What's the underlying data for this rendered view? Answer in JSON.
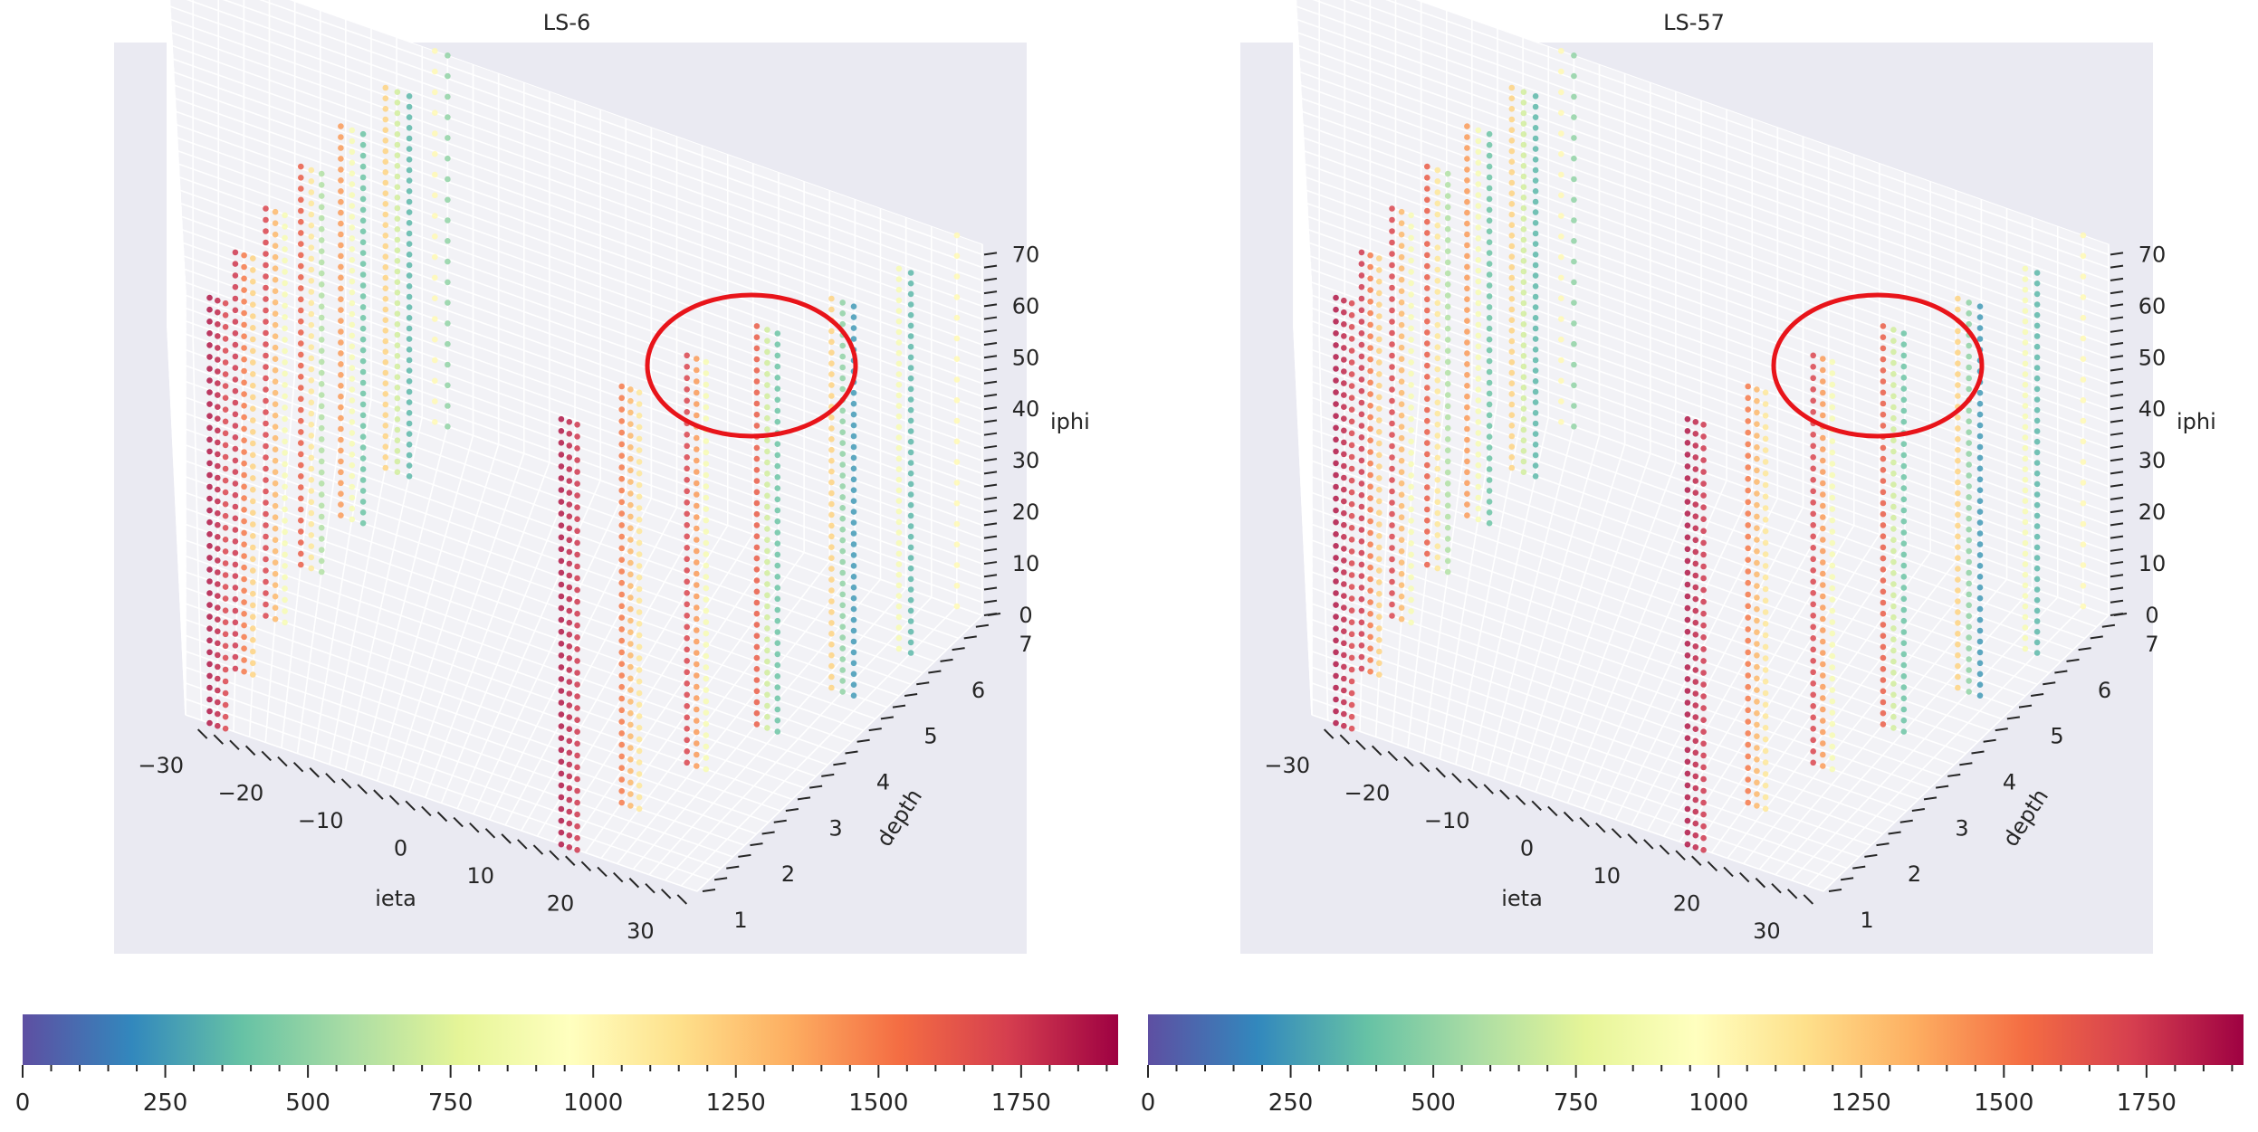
{
  "chart_data": [
    {
      "type": "scatter3d",
      "title": "LS-6",
      "xlabel": "ieta",
      "ylabel": "depth",
      "zlabel": "iphi",
      "xlim": [
        -32,
        32
      ],
      "ylim": [
        1,
        7
      ],
      "zlim": [
        0,
        72
      ],
      "xticks": [
        "−30",
        "−20",
        "−10",
        "0",
        "10",
        "20",
        "30"
      ],
      "yticks": [
        "1",
        "2",
        "3",
        "4",
        "5",
        "6",
        "7"
      ],
      "zticks": [
        "0",
        "10",
        "20",
        "30",
        "40",
        "50",
        "60",
        "70"
      ],
      "grid": true,
      "annotation": "red ellipse highlighting the depth 5–7, ieta 17–27 region near iphi 45–70",
      "series": [
        {
          "ieta": -29,
          "depth": 1,
          "iphi_range": [
            0,
            72
          ],
          "step": 2,
          "value": 1850
        },
        {
          "ieta": -28,
          "depth": 1,
          "iphi_range": [
            0,
            72
          ],
          "step": 2,
          "value": 1800
        },
        {
          "ieta": -27,
          "depth": 1,
          "iphi_range": [
            0,
            72
          ],
          "step": 2,
          "value": 1700
        },
        {
          "ieta": -26,
          "depth": 2,
          "iphi_range": [
            0,
            72
          ],
          "step": 2,
          "value": 1750
        },
        {
          "ieta": -25,
          "depth": 2,
          "iphi_range": [
            0,
            72
          ],
          "step": 2,
          "value": 1500
        },
        {
          "ieta": -24,
          "depth": 2,
          "iphi_range": [
            0,
            72
          ],
          "step": 2,
          "value": 1200
        },
        {
          "ieta": -23,
          "depth": 3,
          "iphi_range": [
            0,
            72
          ],
          "step": 2,
          "value": 1700
        },
        {
          "ieta": -22,
          "depth": 3,
          "iphi_range": [
            0,
            72
          ],
          "step": 2,
          "value": 1300
        },
        {
          "ieta": -21,
          "depth": 3,
          "iphi_range": [
            0,
            72
          ],
          "step": 2,
          "value": 900
        },
        {
          "ieta": -20,
          "depth": 4,
          "iphi_range": [
            0,
            72
          ],
          "step": 2,
          "value": 1600
        },
        {
          "ieta": -19,
          "depth": 4,
          "iphi_range": [
            0,
            72
          ],
          "step": 2,
          "value": 1100
        },
        {
          "ieta": -18,
          "depth": 4,
          "iphi_range": [
            0,
            72
          ],
          "step": 2,
          "value": 600
        },
        {
          "ieta": -17,
          "depth": 5,
          "iphi_range": [
            0,
            72
          ],
          "step": 2,
          "value": 1400
        },
        {
          "ieta": -16,
          "depth": 5,
          "iphi_range": [
            0,
            72
          ],
          "step": 2,
          "value": 900
        },
        {
          "ieta": -15,
          "depth": 5,
          "iphi_range": [
            0,
            72
          ],
          "step": 2,
          "value": 400
        },
        {
          "ieta": -14,
          "depth": 6,
          "iphi_range": [
            0,
            72
          ],
          "step": 2,
          "value": 1200
        },
        {
          "ieta": -13,
          "depth": 6,
          "iphi_range": [
            0,
            72
          ],
          "step": 2,
          "value": 700
        },
        {
          "ieta": -12,
          "depth": 6,
          "iphi_range": [
            0,
            72
          ],
          "step": 2,
          "value": 350
        },
        {
          "ieta": -11,
          "depth": 7,
          "iphi_range": [
            0,
            72
          ],
          "step": 4,
          "value": 1000
        },
        {
          "ieta": -10,
          "depth": 7,
          "iphi_range": [
            0,
            72
          ],
          "step": 4,
          "value": 500
        },
        {
          "ieta": 15,
          "depth": 1,
          "iphi_range": [
            0,
            72
          ],
          "step": 2,
          "value": 1850
        },
        {
          "ieta": 16,
          "depth": 1,
          "iphi_range": [
            0,
            72
          ],
          "step": 2,
          "value": 1800
        },
        {
          "ieta": 17,
          "depth": 1,
          "iphi_range": [
            0,
            72
          ],
          "step": 2,
          "value": 1750
        },
        {
          "ieta": 18,
          "depth": 2,
          "iphi_range": [
            0,
            72
          ],
          "step": 2,
          "value": 1500
        },
        {
          "ieta": 19,
          "depth": 2,
          "iphi_range": [
            0,
            72
          ],
          "step": 2,
          "value": 1300
        },
        {
          "ieta": 20,
          "depth": 2,
          "iphi_range": [
            0,
            72
          ],
          "step": 2,
          "value": 1100
        },
        {
          "ieta": 21,
          "depth": 3,
          "iphi_range": [
            0,
            72
          ],
          "step": 2,
          "value": 1700
        },
        {
          "ieta": 22,
          "depth": 3,
          "iphi_range": [
            0,
            72
          ],
          "step": 2,
          "value": 1400
        },
        {
          "ieta": 23,
          "depth": 3,
          "iphi_range": [
            0,
            72
          ],
          "step": 2,
          "value": 900
        },
        {
          "ieta": 24,
          "depth": 4,
          "iphi_range": [
            0,
            72
          ],
          "step": 2,
          "value": 1600
        },
        {
          "ieta": 25,
          "depth": 4,
          "iphi_range": [
            0,
            72
          ],
          "step": 2,
          "value": 700
        },
        {
          "ieta": 26,
          "depth": 4,
          "iphi_range": [
            0,
            72
          ],
          "step": 2,
          "value": 400
        },
        {
          "ieta": 27,
          "depth": 5,
          "iphi_range": [
            0,
            72
          ],
          "step": 2,
          "value": 1200
        },
        {
          "ieta": 28,
          "depth": 5,
          "iphi_range": [
            0,
            72
          ],
          "step": 2,
          "value": 500
        },
        {
          "ieta": 29,
          "depth": 5,
          "iphi_range": [
            0,
            72
          ],
          "step": 2,
          "value": 250
        },
        {
          "ieta": 29,
          "depth": 6,
          "iphi_range": [
            0,
            72
          ],
          "step": 2,
          "value": 900
        },
        {
          "ieta": 30,
          "depth": 6,
          "iphi_range": [
            0,
            72
          ],
          "step": 2,
          "value": 350
        },
        {
          "ieta": 30,
          "depth": 7,
          "iphi_range": [
            0,
            72
          ],
          "step": 4,
          "value": 1000
        }
      ]
    },
    {
      "type": "scatter3d",
      "title": "LS-57",
      "xlabel": "ieta",
      "ylabel": "depth",
      "zlabel": "iphi",
      "xlim": [
        -32,
        32
      ],
      "ylim": [
        1,
        7
      ],
      "zlim": [
        0,
        72
      ],
      "xticks": [
        "−30",
        "−20",
        "−10",
        "0",
        "10",
        "20",
        "30"
      ],
      "yticks": [
        "1",
        "2",
        "3",
        "4",
        "5",
        "6",
        "7"
      ],
      "zticks": [
        "0",
        "10",
        "20",
        "30",
        "40",
        "50",
        "60",
        "70"
      ],
      "grid": true,
      "annotation": "red ellipse highlighting the depth 5–7, ieta 17–27 region near iphi 45–70",
      "series": [
        {
          "ieta": -29,
          "depth": 1,
          "iphi_range": [
            0,
            72
          ],
          "step": 2,
          "value": 1850
        },
        {
          "ieta": -28,
          "depth": 1,
          "iphi_range": [
            0,
            72
          ],
          "step": 2,
          "value": 1800
        },
        {
          "ieta": -27,
          "depth": 1,
          "iphi_range": [
            0,
            72
          ],
          "step": 2,
          "value": 1700
        },
        {
          "ieta": -26,
          "depth": 2,
          "iphi_range": [
            0,
            72
          ],
          "step": 2,
          "value": 1750
        },
        {
          "ieta": -25,
          "depth": 2,
          "iphi_range": [
            0,
            72
          ],
          "step": 2,
          "value": 1500
        },
        {
          "ieta": -24,
          "depth": 2,
          "iphi_range": [
            0,
            72
          ],
          "step": 2,
          "value": 1200
        },
        {
          "ieta": -23,
          "depth": 3,
          "iphi_range": [
            0,
            72
          ],
          "step": 2,
          "value": 1700
        },
        {
          "ieta": -22,
          "depth": 3,
          "iphi_range": [
            0,
            72
          ],
          "step": 2,
          "value": 1300
        },
        {
          "ieta": -21,
          "depth": 3,
          "iphi_range": [
            0,
            72
          ],
          "step": 2,
          "value": 900
        },
        {
          "ieta": -20,
          "depth": 4,
          "iphi_range": [
            0,
            72
          ],
          "step": 2,
          "value": 1600
        },
        {
          "ieta": -19,
          "depth": 4,
          "iphi_range": [
            0,
            72
          ],
          "step": 2,
          "value": 1100
        },
        {
          "ieta": -18,
          "depth": 4,
          "iphi_range": [
            0,
            72
          ],
          "step": 2,
          "value": 600
        },
        {
          "ieta": -17,
          "depth": 5,
          "iphi_range": [
            0,
            72
          ],
          "step": 2,
          "value": 1400
        },
        {
          "ieta": -16,
          "depth": 5,
          "iphi_range": [
            0,
            72
          ],
          "step": 2,
          "value": 900
        },
        {
          "ieta": -15,
          "depth": 5,
          "iphi_range": [
            0,
            72
          ],
          "step": 2,
          "value": 400
        },
        {
          "ieta": -14,
          "depth": 6,
          "iphi_range": [
            0,
            72
          ],
          "step": 2,
          "value": 1200
        },
        {
          "ieta": -13,
          "depth": 6,
          "iphi_range": [
            0,
            72
          ],
          "step": 2,
          "value": 700
        },
        {
          "ieta": -12,
          "depth": 6,
          "iphi_range": [
            0,
            72
          ],
          "step": 2,
          "value": 350
        },
        {
          "ieta": -11,
          "depth": 7,
          "iphi_range": [
            0,
            72
          ],
          "step": 4,
          "value": 1000
        },
        {
          "ieta": -10,
          "depth": 7,
          "iphi_range": [
            0,
            72
          ],
          "step": 4,
          "value": 500
        },
        {
          "ieta": 15,
          "depth": 1,
          "iphi_range": [
            0,
            72
          ],
          "step": 2,
          "value": 1850
        },
        {
          "ieta": 16,
          "depth": 1,
          "iphi_range": [
            0,
            72
          ],
          "step": 2,
          "value": 1800
        },
        {
          "ieta": 17,
          "depth": 1,
          "iphi_range": [
            0,
            72
          ],
          "step": 2,
          "value": 1750
        },
        {
          "ieta": 18,
          "depth": 2,
          "iphi_range": [
            0,
            72
          ],
          "step": 2,
          "value": 1500
        },
        {
          "ieta": 19,
          "depth": 2,
          "iphi_range": [
            0,
            72
          ],
          "step": 2,
          "value": 1300
        },
        {
          "ieta": 20,
          "depth": 2,
          "iphi_range": [
            0,
            72
          ],
          "step": 2,
          "value": 1100
        },
        {
          "ieta": 21,
          "depth": 3,
          "iphi_range": [
            0,
            72
          ],
          "step": 2,
          "value": 1700
        },
        {
          "ieta": 22,
          "depth": 3,
          "iphi_range": [
            0,
            72
          ],
          "step": 2,
          "value": 1400
        },
        {
          "ieta": 23,
          "depth": 3,
          "iphi_range": [
            0,
            72
          ],
          "step": 2,
          "value": 900
        },
        {
          "ieta": 24,
          "depth": 4,
          "iphi_range": [
            0,
            72
          ],
          "step": 2,
          "value": 1600
        },
        {
          "ieta": 25,
          "depth": 4,
          "iphi_range": [
            0,
            72
          ],
          "step": 2,
          "value": 700
        },
        {
          "ieta": 26,
          "depth": 4,
          "iphi_range": [
            0,
            72
          ],
          "step": 2,
          "value": 400
        },
        {
          "ieta": 27,
          "depth": 5,
          "iphi_range": [
            0,
            72
          ],
          "step": 2,
          "value": 1200
        },
        {
          "ieta": 28,
          "depth": 5,
          "iphi_range": [
            0,
            72
          ],
          "step": 2,
          "value": 500
        },
        {
          "ieta": 29,
          "depth": 5,
          "iphi_range": [
            0,
            72
          ],
          "step": 2,
          "value": 250
        },
        {
          "ieta": 29,
          "depth": 6,
          "iphi_range": [
            0,
            72
          ],
          "step": 2,
          "value": 900
        },
        {
          "ieta": 30,
          "depth": 6,
          "iphi_range": [
            0,
            72
          ],
          "step": 2,
          "value": 350
        },
        {
          "ieta": 30,
          "depth": 7,
          "iphi_range": [
            0,
            72
          ],
          "step": 4,
          "value": 1000
        }
      ]
    }
  ],
  "colorbars": [
    {
      "range": [
        0,
        1920
      ],
      "ticks": [
        "0",
        "250",
        "500",
        "750",
        "1000",
        "1250",
        "1500",
        "1750"
      ]
    },
    {
      "range": [
        0,
        1920
      ],
      "ticks": [
        "0",
        "250",
        "500",
        "750",
        "1000",
        "1250",
        "1500",
        "1750"
      ]
    }
  ],
  "colors": {
    "panel_bg": "#eaeaf2",
    "grid": "#ffffff",
    "highlight": "#e8141a",
    "colormap": [
      "#5e4fa2",
      "#3288bd",
      "#66c2a5",
      "#abdda4",
      "#e6f598",
      "#ffffbf",
      "#fee08b",
      "#fdae61",
      "#f46d43",
      "#d53e4f",
      "#9e0142"
    ]
  }
}
